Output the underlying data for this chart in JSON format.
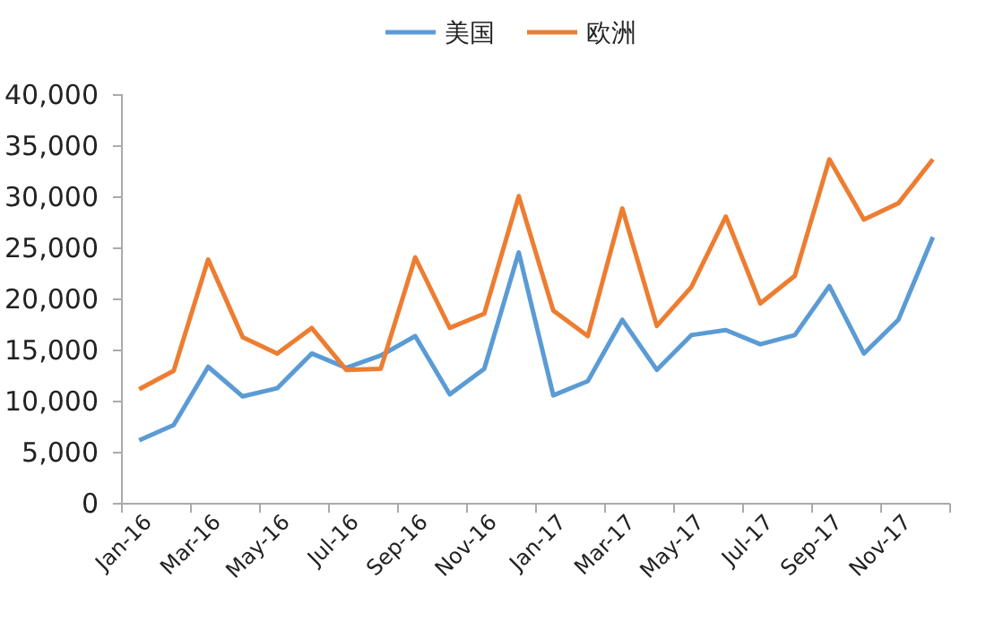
{
  "chart_data": {
    "type": "line",
    "categories": [
      "Jan-16",
      null,
      "Mar-16",
      null,
      "May-16",
      null,
      "Jul-16",
      null,
      "Sep-16",
      null,
      "Nov-16",
      null,
      "Jan-17",
      null,
      "Mar-17",
      null,
      "May-17",
      null,
      "Jul-17",
      null,
      "Sep-17",
      null,
      "Nov-17",
      null
    ],
    "series": [
      {
        "name": "美国",
        "color": "#5b9bd5",
        "values": [
          6200,
          7700,
          13400,
          10500,
          11300,
          14700,
          13300,
          14500,
          16400,
          10700,
          13200,
          24600,
          10600,
          12000,
          18000,
          13100,
          16500,
          17000,
          15600,
          16500,
          21300,
          14700,
          18000,
          26100
        ]
      },
      {
        "name": "欧洲",
        "color": "#ed7d31",
        "values": [
          11200,
          13000,
          23900,
          16300,
          14700,
          17200,
          13100,
          13200,
          24100,
          17200,
          18600,
          30100,
          18900,
          16400,
          28900,
          17400,
          21200,
          28100,
          19600,
          22300,
          33700,
          27800,
          29400,
          33700
        ]
      }
    ],
    "ylim": [
      0,
      40000
    ],
    "yticks": [
      {
        "value": 0,
        "label": "0"
      },
      {
        "value": 5000,
        "label": "5,000"
      },
      {
        "value": 10000,
        "label": "10,000"
      },
      {
        "value": 15000,
        "label": "15,000"
      },
      {
        "value": 20000,
        "label": "20,000"
      },
      {
        "value": 25000,
        "label": "25,000"
      },
      {
        "value": 30000,
        "label": "30,000"
      },
      {
        "value": 35000,
        "label": "35,000"
      },
      {
        "value": 40000,
        "label": "40,000"
      }
    ],
    "legend": "top",
    "marker": "none",
    "line_style": "solid",
    "grid": false
  }
}
